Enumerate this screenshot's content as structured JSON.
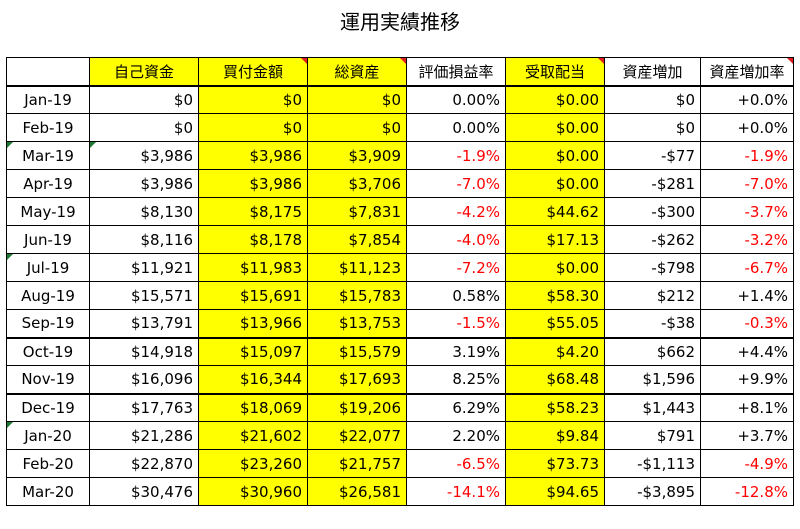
{
  "title": "運用実績推移",
  "columns": [
    "自己資金",
    "買付金額",
    "総資産",
    "評価損益率",
    "受取配当",
    "資産増加",
    "資産増加率"
  ],
  "rows": [
    {
      "month": "Jan-19",
      "own": "$0",
      "purchase": "$0",
      "total": "$0",
      "eval_rate": "0.00%",
      "dividend": "$0.00",
      "increase": "$0",
      "increase_rate": "+0.0%"
    },
    {
      "month": "Feb-19",
      "own": "$0",
      "purchase": "$0",
      "total": "$0",
      "eval_rate": "0.00%",
      "dividend": "$0.00",
      "increase": "$0",
      "increase_rate": "+0.0%"
    },
    {
      "month": "Mar-19",
      "own": "$3,986",
      "purchase": "$3,986",
      "total": "$3,909",
      "eval_rate": "-1.9%",
      "dividend": "$0.00",
      "increase": "-$77",
      "increase_rate": "-1.9%"
    },
    {
      "month": "Apr-19",
      "own": "$3,986",
      "purchase": "$3,986",
      "total": "$3,706",
      "eval_rate": "-7.0%",
      "dividend": "$0.00",
      "increase": "-$281",
      "increase_rate": "-7.0%"
    },
    {
      "month": "May-19",
      "own": "$8,130",
      "purchase": "$8,175",
      "total": "$7,831",
      "eval_rate": "-4.2%",
      "dividend": "$44.62",
      "increase": "-$300",
      "increase_rate": "-3.7%"
    },
    {
      "month": "Jun-19",
      "own": "$8,116",
      "purchase": "$8,178",
      "total": "$7,854",
      "eval_rate": "-4.0%",
      "dividend": "$17.13",
      "increase": "-$262",
      "increase_rate": "-3.2%"
    },
    {
      "month": "Jul-19",
      "own": "$11,921",
      "purchase": "$11,983",
      "total": "$11,123",
      "eval_rate": "-7.2%",
      "dividend": "$0.00",
      "increase": "-$798",
      "increase_rate": "-6.7%"
    },
    {
      "month": "Aug-19",
      "own": "$15,571",
      "purchase": "$15,691",
      "total": "$15,783",
      "eval_rate": "0.58%",
      "dividend": "$58.30",
      "increase": "$212",
      "increase_rate": "+1.4%"
    },
    {
      "month": "Sep-19",
      "own": "$13,791",
      "purchase": "$13,966",
      "total": "$13,753",
      "eval_rate": "-1.5%",
      "dividend": "$55.05",
      "increase": "-$38",
      "increase_rate": "-0.3%"
    },
    {
      "month": "Oct-19",
      "own": "$14,918",
      "purchase": "$15,097",
      "total": "$15,579",
      "eval_rate": "3.19%",
      "dividend": "$4.20",
      "increase": "$662",
      "increase_rate": "+4.4%"
    },
    {
      "month": "Nov-19",
      "own": "$16,096",
      "purchase": "$16,344",
      "total": "$17,693",
      "eval_rate": "8.25%",
      "dividend": "$68.48",
      "increase": "$1,596",
      "increase_rate": "+9.9%"
    },
    {
      "month": "Dec-19",
      "own": "$17,763",
      "purchase": "$18,069",
      "total": "$19,206",
      "eval_rate": "6.29%",
      "dividend": "$58.23",
      "increase": "$1,443",
      "increase_rate": "+8.1%"
    },
    {
      "month": "Jan-20",
      "own": "$21,286",
      "purchase": "$21,602",
      "total": "$22,077",
      "eval_rate": "2.20%",
      "dividend": "$9.84",
      "increase": "$791",
      "increase_rate": "+3.7%"
    },
    {
      "month": "Feb-20",
      "own": "$22,870",
      "purchase": "$23,260",
      "total": "$21,757",
      "eval_rate": "-6.5%",
      "dividend": "$73.73",
      "increase": "-$1,113",
      "increase_rate": "-4.9%"
    },
    {
      "month": "Mar-20",
      "own": "$30,476",
      "purchase": "$30,960",
      "total": "$26,581",
      "eval_rate": "-14.1%",
      "dividend": "$94.65",
      "increase": "-$3,895",
      "increase_rate": "-12.8%"
    }
  ],
  "colors": {
    "highlight": "#ffff00",
    "negative": "#ff0000",
    "positive_text": "#000000",
    "comment_marker": "#e02020",
    "indicator_marker": "#1e7b34"
  }
}
